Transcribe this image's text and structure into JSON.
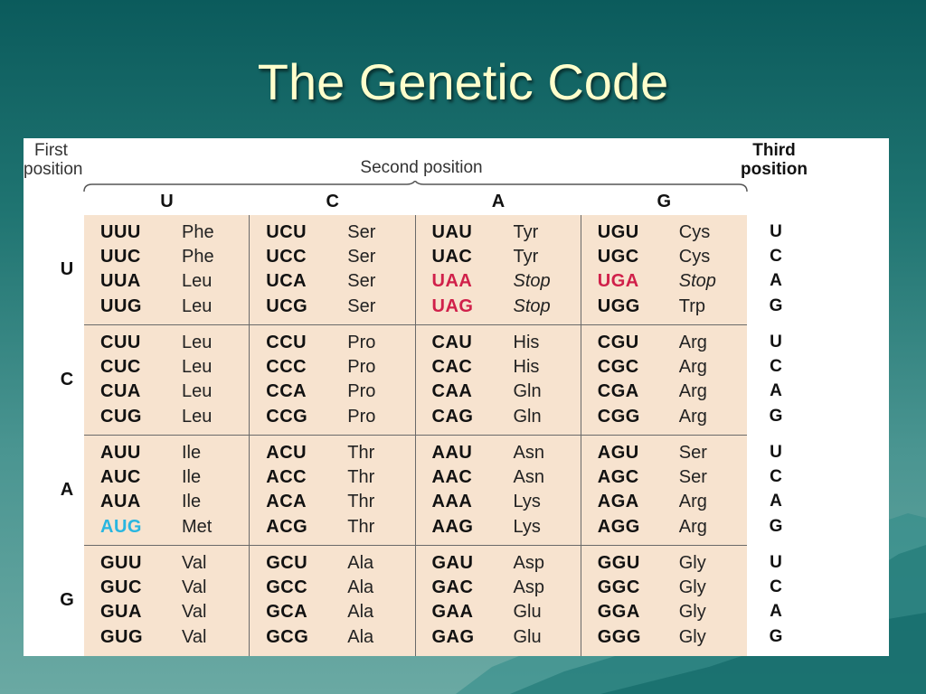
{
  "slide": {
    "title": "The Genetic Code"
  },
  "headers": {
    "first_line1": "First",
    "first_line2": "position",
    "second": "Second position",
    "third_line1": "Third",
    "third_line2": "position"
  },
  "columns": [
    "U",
    "C",
    "A",
    "G"
  ],
  "rows": [
    "U",
    "C",
    "A",
    "G"
  ],
  "third_bases": [
    "U",
    "C",
    "A",
    "G"
  ],
  "colors": {
    "stop": "#d0204a",
    "start": "#29b6e0",
    "cell_bg": "#f7e3cf"
  },
  "table": [
    [
      [
        {
          "codon": "UUU",
          "aa": "Phe"
        },
        {
          "codon": "UUC",
          "aa": "Phe"
        },
        {
          "codon": "UUA",
          "aa": "Leu"
        },
        {
          "codon": "UUG",
          "aa": "Leu"
        }
      ],
      [
        {
          "codon": "UCU",
          "aa": "Ser"
        },
        {
          "codon": "UCC",
          "aa": "Ser"
        },
        {
          "codon": "UCA",
          "aa": "Ser"
        },
        {
          "codon": "UCG",
          "aa": "Ser"
        }
      ],
      [
        {
          "codon": "UAU",
          "aa": "Tyr"
        },
        {
          "codon": "UAC",
          "aa": "Tyr"
        },
        {
          "codon": "UAA",
          "aa": "Stop",
          "type": "stop"
        },
        {
          "codon": "UAG",
          "aa": "Stop",
          "type": "stop"
        }
      ],
      [
        {
          "codon": "UGU",
          "aa": "Cys"
        },
        {
          "codon": "UGC",
          "aa": "Cys"
        },
        {
          "codon": "UGA",
          "aa": "Stop",
          "type": "stop"
        },
        {
          "codon": "UGG",
          "aa": "Trp"
        }
      ]
    ],
    [
      [
        {
          "codon": "CUU",
          "aa": "Leu"
        },
        {
          "codon": "CUC",
          "aa": "Leu"
        },
        {
          "codon": "CUA",
          "aa": "Leu"
        },
        {
          "codon": "CUG",
          "aa": "Leu"
        }
      ],
      [
        {
          "codon": "CCU",
          "aa": "Pro"
        },
        {
          "codon": "CCC",
          "aa": "Pro"
        },
        {
          "codon": "CCA",
          "aa": "Pro"
        },
        {
          "codon": "CCG",
          "aa": "Pro"
        }
      ],
      [
        {
          "codon": "CAU",
          "aa": "His"
        },
        {
          "codon": "CAC",
          "aa": "His"
        },
        {
          "codon": "CAA",
          "aa": "Gln"
        },
        {
          "codon": "CAG",
          "aa": "Gln"
        }
      ],
      [
        {
          "codon": "CGU",
          "aa": "Arg"
        },
        {
          "codon": "CGC",
          "aa": "Arg"
        },
        {
          "codon": "CGA",
          "aa": "Arg"
        },
        {
          "codon": "CGG",
          "aa": "Arg"
        }
      ]
    ],
    [
      [
        {
          "codon": "AUU",
          "aa": "Ile"
        },
        {
          "codon": "AUC",
          "aa": "Ile"
        },
        {
          "codon": "AUA",
          "aa": "Ile"
        },
        {
          "codon": "AUG",
          "aa": "Met",
          "type": "start"
        }
      ],
      [
        {
          "codon": "ACU",
          "aa": "Thr"
        },
        {
          "codon": "ACC",
          "aa": "Thr"
        },
        {
          "codon": "ACA",
          "aa": "Thr"
        },
        {
          "codon": "ACG",
          "aa": "Thr"
        }
      ],
      [
        {
          "codon": "AAU",
          "aa": "Asn"
        },
        {
          "codon": "AAC",
          "aa": "Asn"
        },
        {
          "codon": "AAA",
          "aa": "Lys"
        },
        {
          "codon": "AAG",
          "aa": "Lys"
        }
      ],
      [
        {
          "codon": "AGU",
          "aa": "Ser"
        },
        {
          "codon": "AGC",
          "aa": "Ser"
        },
        {
          "codon": "AGA",
          "aa": "Arg"
        },
        {
          "codon": "AGG",
          "aa": "Arg"
        }
      ]
    ],
    [
      [
        {
          "codon": "GUU",
          "aa": "Val"
        },
        {
          "codon": "GUC",
          "aa": "Val"
        },
        {
          "codon": "GUA",
          "aa": "Val"
        },
        {
          "codon": "GUG",
          "aa": "Val"
        }
      ],
      [
        {
          "codon": "GCU",
          "aa": "Ala"
        },
        {
          "codon": "GCC",
          "aa": "Ala"
        },
        {
          "codon": "GCA",
          "aa": "Ala"
        },
        {
          "codon": "GCG",
          "aa": "Ala"
        }
      ],
      [
        {
          "codon": "GAU",
          "aa": "Asp"
        },
        {
          "codon": "GAC",
          "aa": "Asp"
        },
        {
          "codon": "GAA",
          "aa": "Glu"
        },
        {
          "codon": "GAG",
          "aa": "Glu"
        }
      ],
      [
        {
          "codon": "GGU",
          "aa": "Gly"
        },
        {
          "codon": "GGC",
          "aa": "Gly"
        },
        {
          "codon": "GGA",
          "aa": "Gly"
        },
        {
          "codon": "GGG",
          "aa": "Gly"
        }
      ]
    ]
  ]
}
